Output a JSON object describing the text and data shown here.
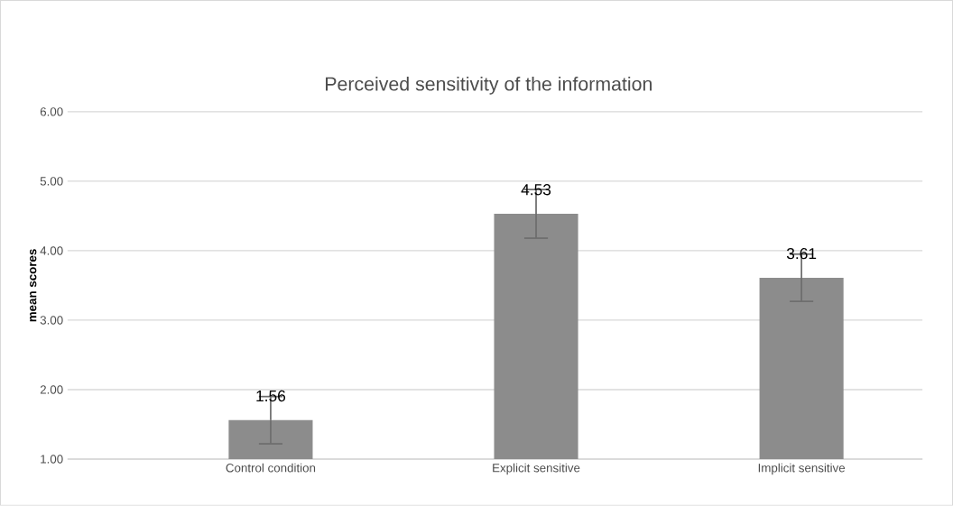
{
  "chart_data": {
    "type": "bar",
    "title": "Perceived sensitivity of the information",
    "ylabel": "mean scores",
    "categories": [
      "Control condition",
      "Explicit sensitive",
      "Implicit sensitive"
    ],
    "values": [
      1.56,
      4.53,
      3.61
    ],
    "errors": [
      0.34,
      0.35,
      0.34
    ],
    "color": "#8c8c8c",
    "ylim": [
      1,
      6
    ],
    "yticks": [
      {
        "value": 1,
        "label": "1.00"
      },
      {
        "value": 2,
        "label": "2.00"
      },
      {
        "value": 3,
        "label": "3.00"
      },
      {
        "value": 4,
        "label": "4.00"
      },
      {
        "value": 5,
        "label": "5.00"
      },
      {
        "value": 6,
        "label": "6.00"
      }
    ],
    "grid": "y",
    "data_labels": true
  }
}
